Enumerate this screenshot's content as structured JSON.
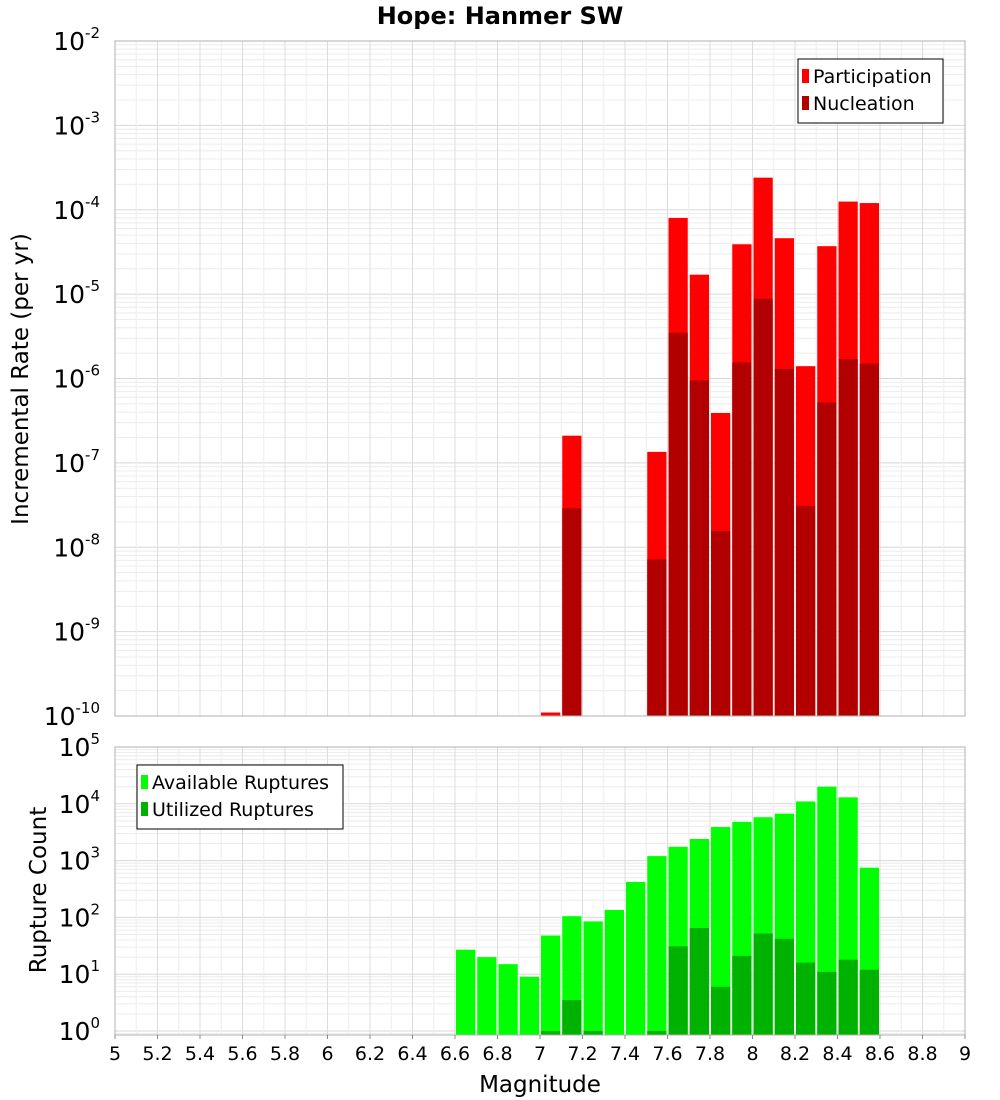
{
  "chart_data": [
    {
      "type": "bar",
      "title": "Hope: Hanmer SW",
      "xlabel": "",
      "ylabel": "Incremental Rate (per yr)",
      "yscale": "log",
      "ylim": [
        1e-10,
        0.01
      ],
      "xlim": [
        5,
        9
      ],
      "y_tick_exponents": [
        -10,
        -9,
        -8,
        -7,
        -6,
        -5,
        -4,
        -3,
        -2
      ],
      "grid": true,
      "legend_position": "top-right",
      "bin_width": 0.1,
      "x": [
        7.05,
        7.15,
        7.55,
        7.65,
        7.75,
        7.85,
        7.95,
        8.05,
        8.15,
        8.25,
        8.35,
        8.45,
        8.55
      ],
      "series": [
        {
          "name": "Participation",
          "color": "#ff0000",
          "values": [
            1.1e-10,
            2.1e-07,
            1.35e-07,
            8e-05,
            1.7e-05,
            3.9e-07,
            3.9e-05,
            0.00024,
            4.6e-05,
            1.4e-06,
            3.7e-05,
            0.000125,
            0.00012
          ]
        },
        {
          "name": "Nucleation",
          "color": "#b20000",
          "values": [
            1e-10,
            2.9e-08,
            7.2e-09,
            3.5e-06,
            9.5e-07,
            1.55e-08,
            1.55e-06,
            8.8e-06,
            1.3e-06,
            3.1e-08,
            5.2e-07,
            1.7e-06,
            1.5e-06
          ]
        }
      ]
    },
    {
      "type": "bar",
      "title": "",
      "xlabel": "Magnitude",
      "ylabel": "Rupture Count",
      "yscale": "log",
      "ylim": [
        0.85,
        100000.0
      ],
      "xlim": [
        5,
        9
      ],
      "y_tick_exponents": [
        0,
        1,
        2,
        3,
        4,
        5
      ],
      "x_ticks": [
        "5",
        "5.2",
        "5.4",
        "5.6",
        "5.8",
        "6",
        "6.2",
        "6.4",
        "6.6",
        "6.8",
        "7",
        "7.2",
        "7.4",
        "7.6",
        "7.8",
        "8",
        "8.2",
        "8.4",
        "8.6",
        "8.8",
        "9"
      ],
      "grid": true,
      "legend_position": "top-left",
      "bin_width": 0.1,
      "x": [
        6.65,
        6.75,
        6.85,
        6.95,
        7.05,
        7.15,
        7.25,
        7.35,
        7.45,
        7.55,
        7.65,
        7.75,
        7.85,
        7.95,
        8.05,
        8.15,
        8.25,
        8.35,
        8.45,
        8.55
      ],
      "series": [
        {
          "name": "Available Ruptures",
          "color": "#00ff00",
          "values": [
            27,
            20,
            15,
            9,
            48,
            105,
            85,
            135,
            420,
            1200,
            1750,
            2400,
            3900,
            4800,
            5800,
            6700,
            11000,
            20000,
            13000,
            750
          ]
        },
        {
          "name": "Utilized Ruptures",
          "color": "#00b200",
          "values": [
            0,
            0,
            0,
            0,
            1,
            3.5,
            1,
            0,
            0,
            1,
            31,
            65,
            6,
            21,
            52,
            42,
            16,
            11,
            18,
            12
          ]
        }
      ]
    }
  ]
}
